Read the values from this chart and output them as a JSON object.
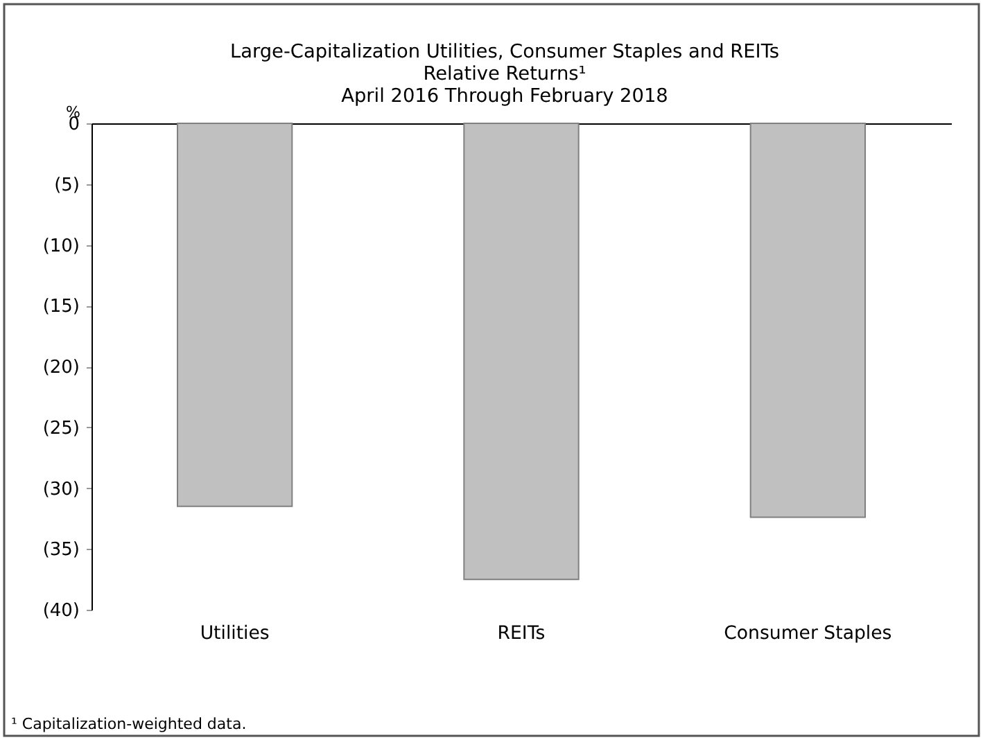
{
  "chart_data": {
    "type": "bar",
    "title": "Large-Capitalization Utilities, Consumer Staples and REITs",
    "subtitle": "Relative Returns¹\nApril 2016 Through February 2018",
    "ylabel": "%",
    "categories": [
      "Utilities",
      "REITs",
      "Consumer Staples"
    ],
    "values": [
      -31.5,
      -37.5,
      -32.4
    ],
    "color": "#c0c0c0",
    "ylim": [
      -40,
      0
    ],
    "yticks": [
      0,
      {
        "value": -5,
        "label": "(5)"
      },
      {
        "value": -10,
        "label": "(10)"
      },
      {
        "value": -15,
        "label": "(15)"
      },
      {
        "value": -20,
        "label": "(20)"
      },
      {
        "value": -25,
        "label": "(25)"
      },
      {
        "value": -30,
        "label": "(30)"
      },
      {
        "value": -35,
        "label": "(35)"
      },
      {
        "value": -40,
        "label": "(40)"
      }
    ],
    "annotations": [
      "¹ Capitalization-weighted data."
    ]
  }
}
